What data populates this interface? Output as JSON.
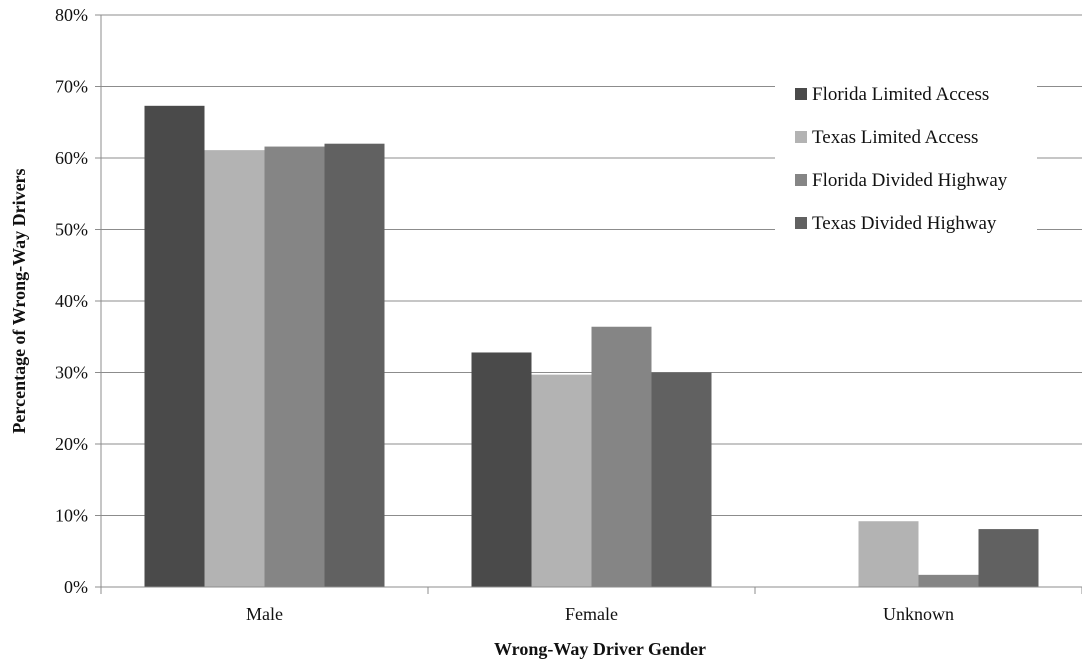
{
  "chart_data": {
    "type": "bar",
    "title": "",
    "xlabel": "Wrong-Way Driver Gender",
    "ylabel": "Percentage of Wrong-Way Drivers",
    "categories": [
      "Male",
      "Female",
      "Unknown"
    ],
    "ylim": [
      0,
      80
    ],
    "yticks": [
      0,
      10,
      20,
      30,
      40,
      50,
      60,
      70,
      80
    ],
    "ytick_suffix": "%",
    "grid": true,
    "legend_position": "top-right",
    "series": [
      {
        "name": "Florida Limited Access",
        "values": [
          67.3,
          32.8,
          0
        ],
        "color": "#4a4a4a"
      },
      {
        "name": "Texas Limited Access",
        "values": [
          61.1,
          29.7,
          9.2
        ],
        "color": "#b3b3b3"
      },
      {
        "name": "Florida Divided Highway",
        "values": [
          61.6,
          36.4,
          1.7
        ],
        "color": "#858585"
      },
      {
        "name": "Texas Divided Highway",
        "values": [
          62.0,
          30.0,
          8.1
        ],
        "color": "#616161"
      }
    ]
  }
}
